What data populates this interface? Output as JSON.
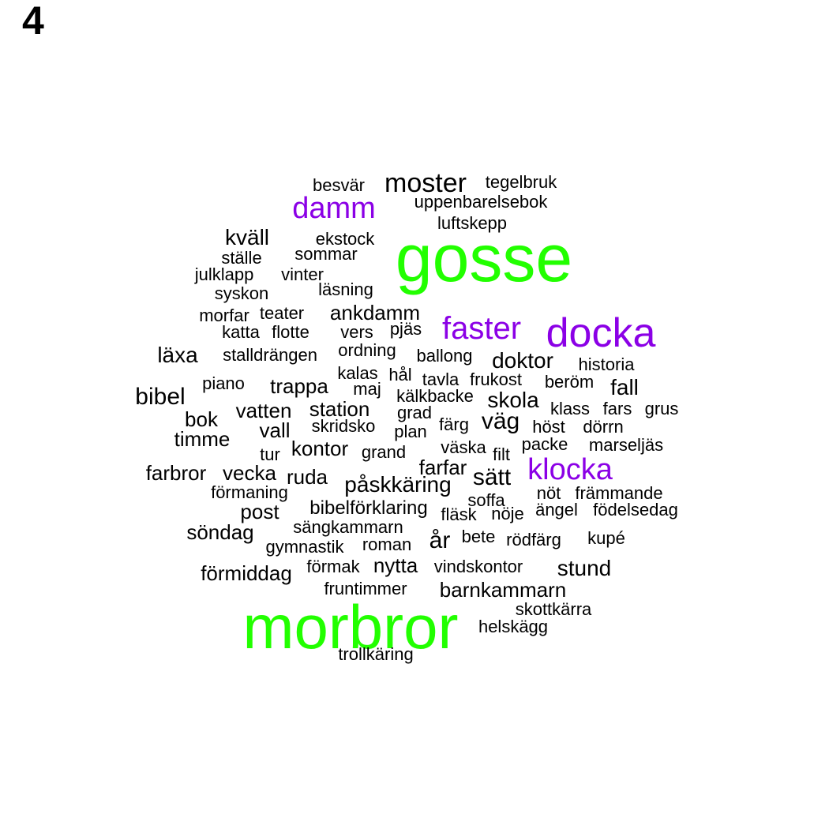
{
  "panel_label": "4",
  "colors": {
    "tier_top": "#22ff00",
    "tier_second": "#8b00e6",
    "tier_rest": "#000000"
  },
  "words": [
    {
      "text": "gosse",
      "tier": "top"
    },
    {
      "text": "morbror",
      "tier": "top"
    },
    {
      "text": "docka",
      "tier": "second"
    },
    {
      "text": "faster",
      "tier": "second"
    },
    {
      "text": "damm",
      "tier": "second"
    },
    {
      "text": "klocka",
      "tier": "second"
    },
    {
      "text": "moster",
      "tier": "rest"
    },
    {
      "text": "besvär",
      "tier": "rest"
    },
    {
      "text": "tegelbruk",
      "tier": "rest"
    },
    {
      "text": "uppenbarelsebok",
      "tier": "rest"
    },
    {
      "text": "luftskepp",
      "tier": "rest"
    },
    {
      "text": "kväll",
      "tier": "rest"
    },
    {
      "text": "ekstock",
      "tier": "rest"
    },
    {
      "text": "ställe",
      "tier": "rest"
    },
    {
      "text": "sommar",
      "tier": "rest"
    },
    {
      "text": "julklapp",
      "tier": "rest"
    },
    {
      "text": "vinter",
      "tier": "rest"
    },
    {
      "text": "syskon",
      "tier": "rest"
    },
    {
      "text": "läsning",
      "tier": "rest"
    },
    {
      "text": "morfar",
      "tier": "rest"
    },
    {
      "text": "teater",
      "tier": "rest"
    },
    {
      "text": "ankdamm",
      "tier": "rest"
    },
    {
      "text": "katta",
      "tier": "rest"
    },
    {
      "text": "flotte",
      "tier": "rest"
    },
    {
      "text": "vers",
      "tier": "rest"
    },
    {
      "text": "pjäs",
      "tier": "rest"
    },
    {
      "text": "läxa",
      "tier": "rest"
    },
    {
      "text": "stalldrängen",
      "tier": "rest"
    },
    {
      "text": "ordning",
      "tier": "rest"
    },
    {
      "text": "ballong",
      "tier": "rest"
    },
    {
      "text": "doktor",
      "tier": "rest"
    },
    {
      "text": "historia",
      "tier": "rest"
    },
    {
      "text": "kalas",
      "tier": "rest"
    },
    {
      "text": "hål",
      "tier": "rest"
    },
    {
      "text": "tavla",
      "tier": "rest"
    },
    {
      "text": "frukost",
      "tier": "rest"
    },
    {
      "text": "beröm",
      "tier": "rest"
    },
    {
      "text": "fall",
      "tier": "rest"
    },
    {
      "text": "piano",
      "tier": "rest"
    },
    {
      "text": "trappa",
      "tier": "rest"
    },
    {
      "text": "maj",
      "tier": "rest"
    },
    {
      "text": "kälkbacke",
      "tier": "rest"
    },
    {
      "text": "skola",
      "tier": "rest"
    },
    {
      "text": "bibel",
      "tier": "rest"
    },
    {
      "text": "vatten",
      "tier": "rest"
    },
    {
      "text": "station",
      "tier": "rest"
    },
    {
      "text": "grad",
      "tier": "rest"
    },
    {
      "text": "klass",
      "tier": "rest"
    },
    {
      "text": "fars",
      "tier": "rest"
    },
    {
      "text": "grus",
      "tier": "rest"
    },
    {
      "text": "bok",
      "tier": "rest"
    },
    {
      "text": "skridsko",
      "tier": "rest"
    },
    {
      "text": "färg",
      "tier": "rest"
    },
    {
      "text": "väg",
      "tier": "rest"
    },
    {
      "text": "höst",
      "tier": "rest"
    },
    {
      "text": "dörrn",
      "tier": "rest"
    },
    {
      "text": "vall",
      "tier": "rest"
    },
    {
      "text": "plan",
      "tier": "rest"
    },
    {
      "text": "timme",
      "tier": "rest"
    },
    {
      "text": "kontor",
      "tier": "rest"
    },
    {
      "text": "väska",
      "tier": "rest"
    },
    {
      "text": "packe",
      "tier": "rest"
    },
    {
      "text": "marseljäs",
      "tier": "rest"
    },
    {
      "text": "tur",
      "tier": "rest"
    },
    {
      "text": "grand",
      "tier": "rest"
    },
    {
      "text": "filt",
      "tier": "rest"
    },
    {
      "text": "farfar",
      "tier": "rest"
    },
    {
      "text": "farbror",
      "tier": "rest"
    },
    {
      "text": "vecka",
      "tier": "rest"
    },
    {
      "text": "ruda",
      "tier": "rest"
    },
    {
      "text": "sätt",
      "tier": "rest"
    },
    {
      "text": "påskkäring",
      "tier": "rest"
    },
    {
      "text": "förmaning",
      "tier": "rest"
    },
    {
      "text": "nöt",
      "tier": "rest"
    },
    {
      "text": "främmande",
      "tier": "rest"
    },
    {
      "text": "soffa",
      "tier": "rest"
    },
    {
      "text": "post",
      "tier": "rest"
    },
    {
      "text": "bibelförklaring",
      "tier": "rest"
    },
    {
      "text": "fläsk",
      "tier": "rest"
    },
    {
      "text": "nöje",
      "tier": "rest"
    },
    {
      "text": "ängel",
      "tier": "rest"
    },
    {
      "text": "födelsedag",
      "tier": "rest"
    },
    {
      "text": "söndag",
      "tier": "rest"
    },
    {
      "text": "sängkammarn",
      "tier": "rest"
    },
    {
      "text": "år",
      "tier": "rest"
    },
    {
      "text": "bete",
      "tier": "rest"
    },
    {
      "text": "rödfärg",
      "tier": "rest"
    },
    {
      "text": "kupé",
      "tier": "rest"
    },
    {
      "text": "gymnastik",
      "tier": "rest"
    },
    {
      "text": "roman",
      "tier": "rest"
    },
    {
      "text": "förmiddag",
      "tier": "rest"
    },
    {
      "text": "förmak",
      "tier": "rest"
    },
    {
      "text": "nytta",
      "tier": "rest"
    },
    {
      "text": "vindskontor",
      "tier": "rest"
    },
    {
      "text": "stund",
      "tier": "rest"
    },
    {
      "text": "fruntimmer",
      "tier": "rest"
    },
    {
      "text": "barnkammarn",
      "tier": "rest"
    },
    {
      "text": "skottkärra",
      "tier": "rest"
    },
    {
      "text": "helskägg",
      "tier": "rest"
    },
    {
      "text": "trollkäring",
      "tier": "rest"
    }
  ]
}
